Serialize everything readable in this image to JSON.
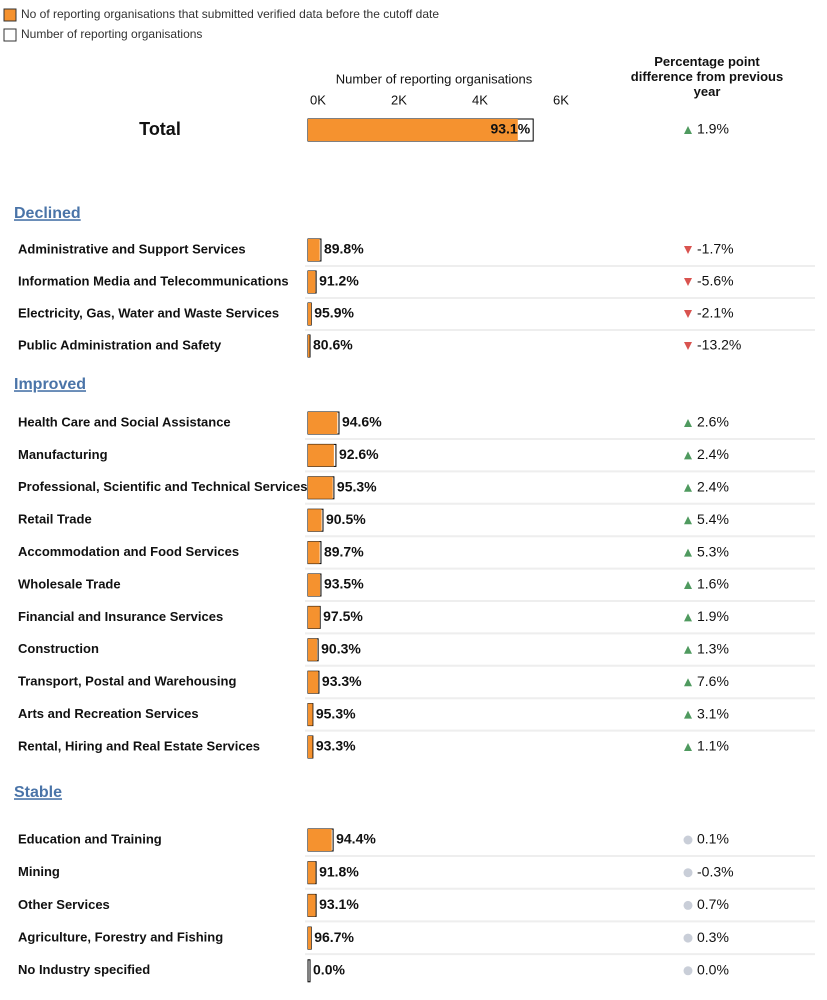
{
  "chart_data": {
    "type": "bar",
    "legend": [
      {
        "name": "No of reporting organisations that submitted verified data before the cutoff date",
        "color": "#f5922f"
      },
      {
        "name": "Number of reporting organisations",
        "color": "#ffffff"
      }
    ],
    "axis_title": "Number of reporting organisations",
    "change_header": "Percentage point difference from previous year",
    "xlim": [
      0,
      6000
    ],
    "xticks": [
      {
        "value": 0,
        "label": "0K"
      },
      {
        "value": 2000,
        "label": "2K"
      },
      {
        "value": 4000,
        "label": "4K"
      },
      {
        "value": 6000,
        "label": "6K"
      }
    ],
    "trend_colors": {
      "up": "#4f9a5f",
      "down": "#d9534f",
      "flat": "#c9ced8"
    },
    "total": {
      "label": "Total",
      "total": 5560,
      "submitted": 5180,
      "rate_label": "93.1%",
      "change_label": "1.9%",
      "trend": "up"
    },
    "groups": [
      {
        "title": "Declined",
        "trend": "down",
        "rows": [
          {
            "label": "Administrative and Support Services",
            "total": 320,
            "submitted": 288,
            "rate_label": "89.8%",
            "change_label": "-1.7%"
          },
          {
            "label": "Information Media and Telecommunications",
            "total": 200,
            "submitted": 182,
            "rate_label": "91.2%",
            "change_label": "-5.6%"
          },
          {
            "label": "Electricity, Gas, Water and Waste Services",
            "total": 80,
            "submitted": 77,
            "rate_label": "95.9%",
            "change_label": "-2.1%"
          },
          {
            "label": "Public Administration and Safety",
            "total": 50,
            "submitted": 40,
            "rate_label": "80.6%",
            "change_label": "-13.2%"
          }
        ]
      },
      {
        "title": "Improved",
        "trend": "up",
        "rows": [
          {
            "label": "Health Care and Social Assistance",
            "total": 765,
            "submitted": 724,
            "rate_label": "94.6%",
            "change_label": "2.6%"
          },
          {
            "label": "Manufacturing",
            "total": 690,
            "submitted": 639,
            "rate_label": "92.6%",
            "change_label": "2.4%"
          },
          {
            "label": "Professional, Scientific and Technical Services",
            "total": 640,
            "submitted": 610,
            "rate_label": "95.3%",
            "change_label": "2.4%"
          },
          {
            "label": "Retail Trade",
            "total": 370,
            "submitted": 335,
            "rate_label": "90.5%",
            "change_label": "5.4%"
          },
          {
            "label": "Accommodation and Food Services",
            "total": 320,
            "submitted": 287,
            "rate_label": "89.7%",
            "change_label": "5.3%"
          },
          {
            "label": "Wholesale Trade",
            "total": 320,
            "submitted": 299,
            "rate_label": "93.5%",
            "change_label": "1.6%"
          },
          {
            "label": "Financial and Insurance Services",
            "total": 300,
            "submitted": 292,
            "rate_label": "97.5%",
            "change_label": "1.9%"
          },
          {
            "label": "Construction",
            "total": 250,
            "submitted": 226,
            "rate_label": "90.3%",
            "change_label": "1.3%"
          },
          {
            "label": "Transport, Postal and Warehousing",
            "total": 270,
            "submitted": 252,
            "rate_label": "93.3%",
            "change_label": "7.6%"
          },
          {
            "label": "Arts and Recreation Services",
            "total": 120,
            "submitted": 114,
            "rate_label": "95.3%",
            "change_label": "3.1%"
          },
          {
            "label": "Rental, Hiring and Real Estate Services",
            "total": 120,
            "submitted": 112,
            "rate_label": "93.3%",
            "change_label": "1.1%"
          }
        ]
      },
      {
        "title": "Stable",
        "trend": "flat",
        "rows": [
          {
            "label": "Education and Training",
            "total": 620,
            "submitted": 585,
            "rate_label": "94.4%",
            "change_label": "0.1%"
          },
          {
            "label": "Mining",
            "total": 200,
            "submitted": 184,
            "rate_label": "91.8%",
            "change_label": "-0.3%"
          },
          {
            "label": "Other Services",
            "total": 200,
            "submitted": 186,
            "rate_label": "93.1%",
            "change_label": "0.7%"
          },
          {
            "label": "Agriculture, Forestry and Fishing",
            "total": 80,
            "submitted": 77,
            "rate_label": "96.7%",
            "change_label": "0.3%"
          },
          {
            "label": "No Industry specified",
            "total": 50,
            "submitted": 0,
            "rate_label": "0.0%",
            "change_label": "0.0%"
          }
        ]
      }
    ]
  }
}
